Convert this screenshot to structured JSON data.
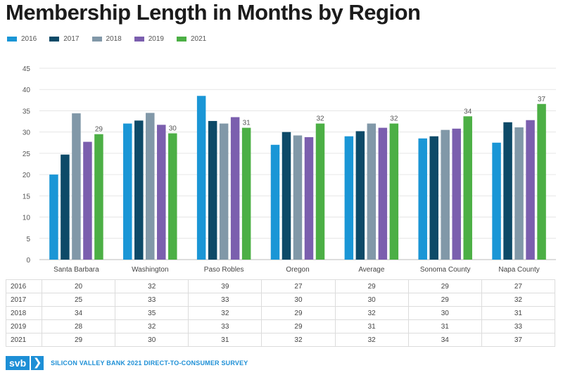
{
  "chart_data": {
    "type": "bar",
    "title": "Membership Length in Months by Region",
    "categories": [
      "Santa Barbara",
      "Washington",
      "Paso Robles",
      "Oregon",
      "Average",
      "Sonoma County",
      "Napa County"
    ],
    "series": [
      {
        "name": "2016",
        "color": "#1a96d6",
        "values": [
          20,
          32,
          38.5,
          27,
          29,
          28.5,
          27.5
        ]
      },
      {
        "name": "2017",
        "color": "#0d4a68",
        "values": [
          24.7,
          32.7,
          32.6,
          30,
          30.2,
          29,
          32.3
        ]
      },
      {
        "name": "2018",
        "color": "#8198a8",
        "values": [
          34.4,
          34.5,
          32,
          29.2,
          32,
          30.5,
          31.1
        ]
      },
      {
        "name": "2019",
        "color": "#7b5fae",
        "values": [
          27.7,
          31.7,
          33.5,
          28.8,
          31,
          30.8,
          32.8
        ]
      },
      {
        "name": "2021",
        "color": "#4caf45",
        "values": [
          29.5,
          29.7,
          31,
          32,
          32,
          33.7,
          36.6
        ]
      }
    ],
    "data_labels": [
      "29",
      "30",
      "31",
      "32",
      "32",
      "34",
      "37"
    ],
    "ylim": [
      0,
      45
    ],
    "yticks": [
      0,
      5,
      10,
      15,
      20,
      25,
      30,
      35,
      40,
      45
    ],
    "grid": true,
    "legend": "top-left"
  },
  "table": {
    "rows": [
      {
        "label": "2016",
        "values": [
          "20",
          "32",
          "39",
          "27",
          "29",
          "29",
          "27"
        ]
      },
      {
        "label": "2017",
        "values": [
          "25",
          "33",
          "33",
          "30",
          "30",
          "29",
          "32"
        ]
      },
      {
        "label": "2018",
        "values": [
          "34",
          "35",
          "32",
          "29",
          "32",
          "30",
          "31"
        ]
      },
      {
        "label": "2019",
        "values": [
          "28",
          "32",
          "33",
          "29",
          "31",
          "31",
          "33"
        ]
      },
      {
        "label": "2021",
        "values": [
          "29",
          "30",
          "31",
          "32",
          "32",
          "34",
          "37"
        ]
      }
    ]
  },
  "footer": {
    "logo_text": "svb",
    "logo_arrow": "❯",
    "source": "SILICON VALLEY BANK 2021 DIRECT-TO-CONSUMER SURVEY"
  }
}
